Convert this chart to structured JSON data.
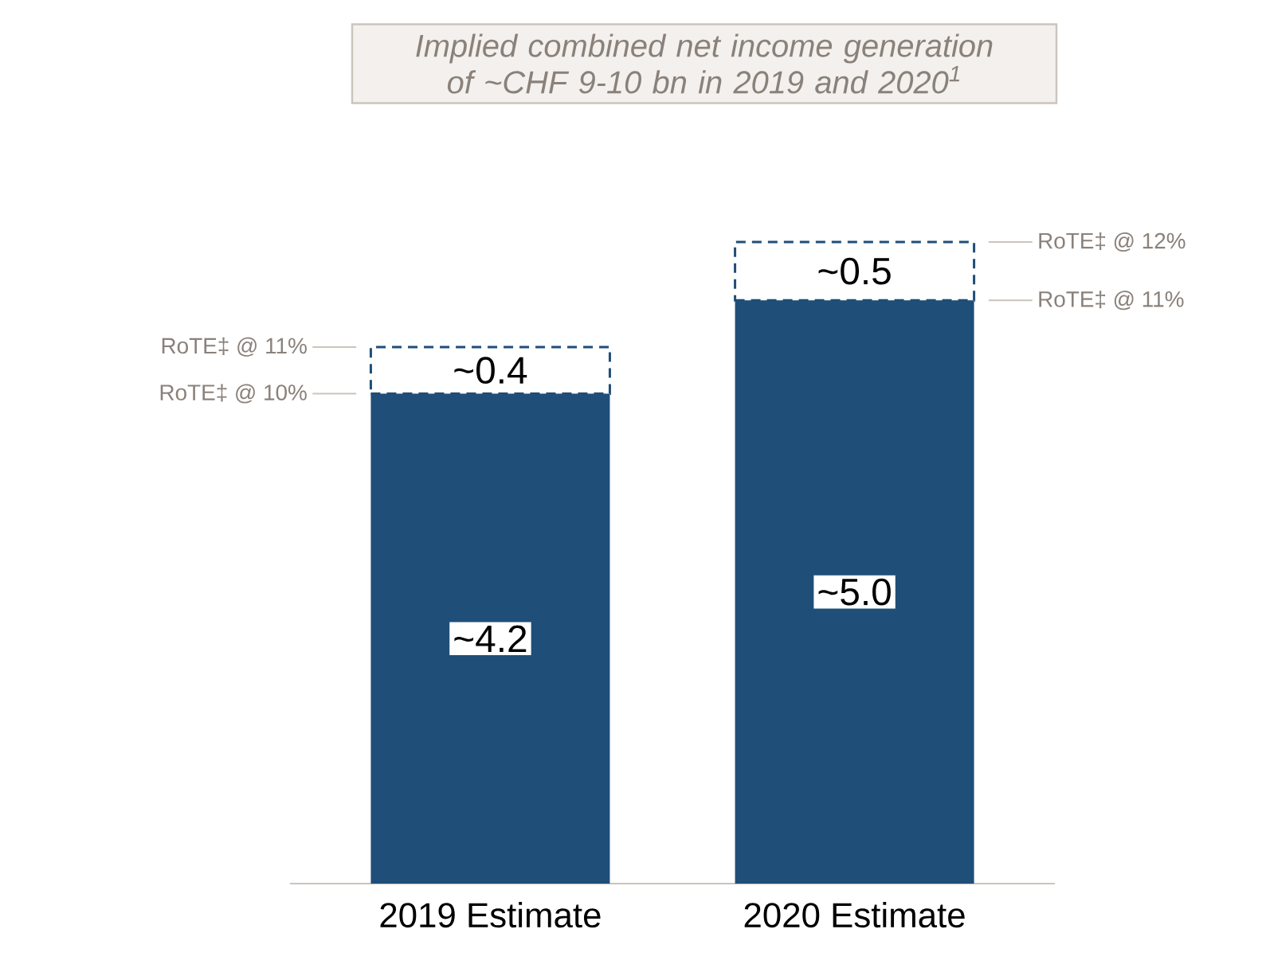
{
  "chart_data": {
    "type": "bar",
    "title": "Implied combined net income generation of ~CHF 9-10 bn in 2019 and 2020$^{1}$",
    "categories": [
      "2019 Estimate",
      "2020 Estimate"
    ],
    "stacked": true,
    "series": [
      {
        "color": "#1f4e79",
        "values": [
          4.2,
          5.0
        ],
        "value_labels": [
          "~4.2",
          "~5.0"
        ],
        "line_style": "solid"
      },
      {
        "color": "#1f4e79",
        "values": [
          0.4,
          0.5
        ],
        "value_labels": [
          "~0.4",
          "~0.5"
        ],
        "line_style": "dashed"
      }
    ],
    "annotations": [
      "RoTE‡ @ 10%",
      "RoTE‡ @ 11%",
      "RoTE‡ @ 11%",
      "RoTE‡ @ 12%"
    ]
  }
}
